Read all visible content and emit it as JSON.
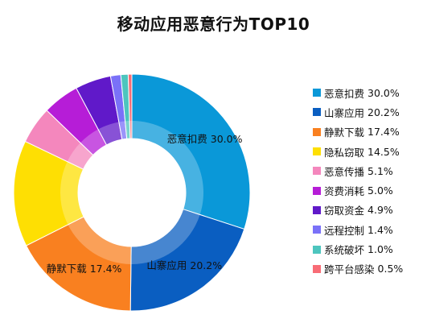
{
  "chart_data": {
    "type": "pie",
    "donut": true,
    "title": "移动应用恶意行为TOP10",
    "legend_position": "right",
    "series": [
      {
        "name": "恶意扣费",
        "value": 30.0,
        "percent_label": "30.0%",
        "color": "#0A98D8"
      },
      {
        "name": "山寨应用",
        "value": 20.2,
        "percent_label": "20.2%",
        "color": "#0A5EC1"
      },
      {
        "name": "静默下载",
        "value": 17.4,
        "percent_label": "17.4%",
        "color": "#F98020"
      },
      {
        "name": "隐私窃取",
        "value": 14.5,
        "percent_label": "14.5%",
        "color": "#FEDF03"
      },
      {
        "name": "恶意传播",
        "value": 5.1,
        "percent_label": "5.1%",
        "color": "#F487BD"
      },
      {
        "name": "资费消耗",
        "value": 5.0,
        "percent_label": "5.0%",
        "color": "#B61DD7"
      },
      {
        "name": "窃取资金",
        "value": 4.9,
        "percent_label": "4.9%",
        "color": "#6019C9"
      },
      {
        "name": "远程控制",
        "value": 1.4,
        "percent_label": "1.4%",
        "color": "#7A71F8"
      },
      {
        "name": "系统破坏",
        "value": 1.0,
        "percent_label": "1.0%",
        "color": "#4DC5BE"
      },
      {
        "name": "跨平台感染",
        "value": 0.5,
        "percent_label": "0.5%",
        "color": "#F86C76"
      }
    ],
    "data_labels": [
      "恶意扣费",
      "山寨应用",
      "静默下载"
    ]
  }
}
